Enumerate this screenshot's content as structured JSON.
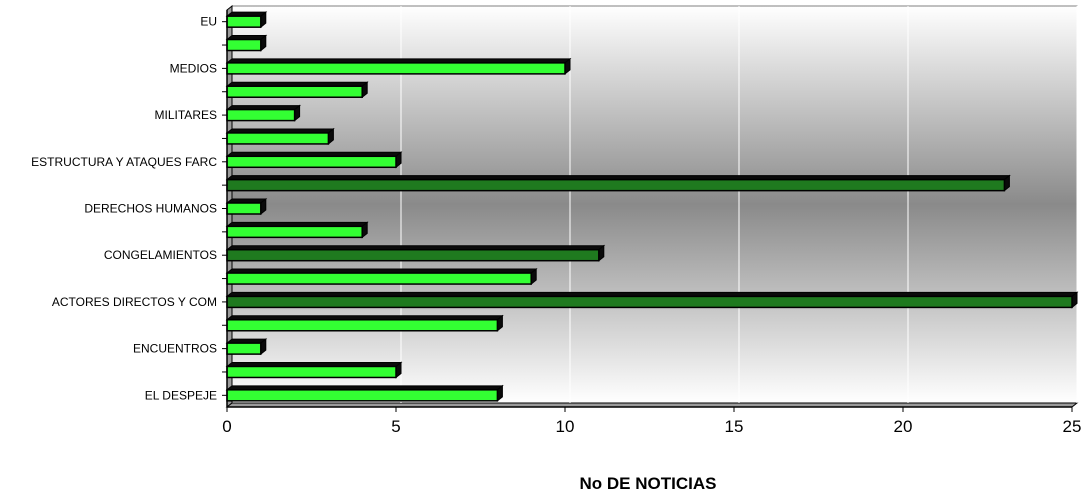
{
  "chart_data": {
    "type": "bar",
    "orientation": "horizontal",
    "categories": [
      "EU",
      "",
      "MEDIOS",
      "",
      "MILITARES",
      "",
      "ESTRUCTURA Y ATAQUES FARC",
      "",
      "DERECHOS HUMANOS",
      "",
      "CONGELAMIENTOS",
      "",
      "ACTORES DIRECTOS Y COM",
      "",
      "ENCUENTROS",
      "",
      "EL DESPEJE"
    ],
    "values": [
      1,
      1,
      10,
      4,
      2,
      3,
      5,
      23,
      1,
      4,
      11,
      9,
      25,
      8,
      1,
      5,
      8
    ],
    "highlighted": [
      7,
      10,
      12
    ],
    "xlabel": "No DE NOTICIAS",
    "xlim": [
      0,
      25
    ],
    "xticks": [
      0,
      5,
      10,
      15,
      20,
      25
    ],
    "grid": "vertical",
    "legend": "none",
    "colors": {
      "bar": "#33ff33",
      "bar_highlight": "#1f7a1f",
      "bar_outline": "#000000",
      "bar_depth": "#0a0a0a",
      "grid": "#ffffff",
      "background_light": "#ffffff",
      "background_dark": "#8a8a8a"
    }
  }
}
